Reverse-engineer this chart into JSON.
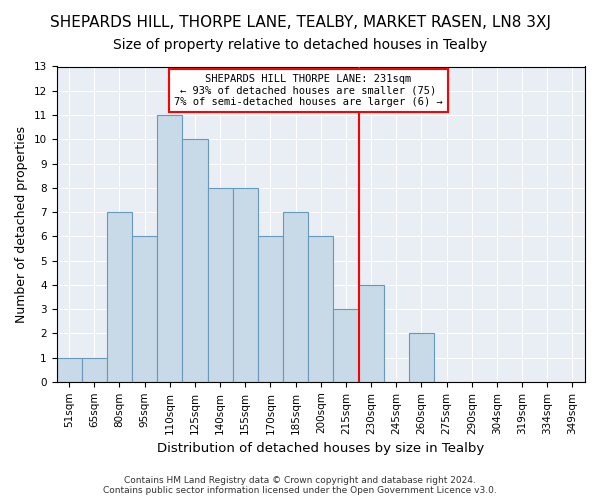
{
  "title": "SHEPARDS HILL, THORPE LANE, TEALBY, MARKET RASEN, LN8 3XJ",
  "subtitle": "Size of property relative to detached houses in Tealby",
  "xlabel": "Distribution of detached houses by size in Tealby",
  "ylabel": "Number of detached properties",
  "bins": [
    "51sqm",
    "65sqm",
    "80sqm",
    "95sqm",
    "110sqm",
    "125sqm",
    "140sqm",
    "155sqm",
    "170sqm",
    "185sqm",
    "200sqm",
    "215sqm",
    "230sqm",
    "245sqm",
    "260sqm",
    "275sqm",
    "290sqm",
    "304sqm",
    "319sqm",
    "334sqm",
    "349sqm"
  ],
  "values": [
    1,
    1,
    7,
    6,
    11,
    10,
    8,
    8,
    6,
    7,
    6,
    3,
    4,
    0,
    2,
    0,
    0,
    0,
    0,
    0,
    0
  ],
  "bar_color": "#c8d9e8",
  "bar_edge_color": "#6699bb",
  "vline_x_index": 12,
  "vline_color": "red",
  "annotation_text": "SHEPARDS HILL THORPE LANE: 231sqm\n← 93% of detached houses are smaller (75)\n7% of semi-detached houses are larger (6) →",
  "annotation_box_color": "white",
  "annotation_box_edge": "red",
  "ylim": [
    0,
    13
  ],
  "yticks": [
    0,
    1,
    2,
    3,
    4,
    5,
    6,
    7,
    8,
    9,
    10,
    11,
    12,
    13
  ],
  "background_color": "#e8eef4",
  "footer": "Contains HM Land Registry data © Crown copyright and database right 2024.\nContains public sector information licensed under the Open Government Licence v3.0.",
  "title_fontsize": 11,
  "subtitle_fontsize": 10,
  "xlabel_fontsize": 9.5,
  "ylabel_fontsize": 9,
  "tick_fontsize": 7.5,
  "annotation_fontsize": 7.5,
  "footer_fontsize": 6.5
}
